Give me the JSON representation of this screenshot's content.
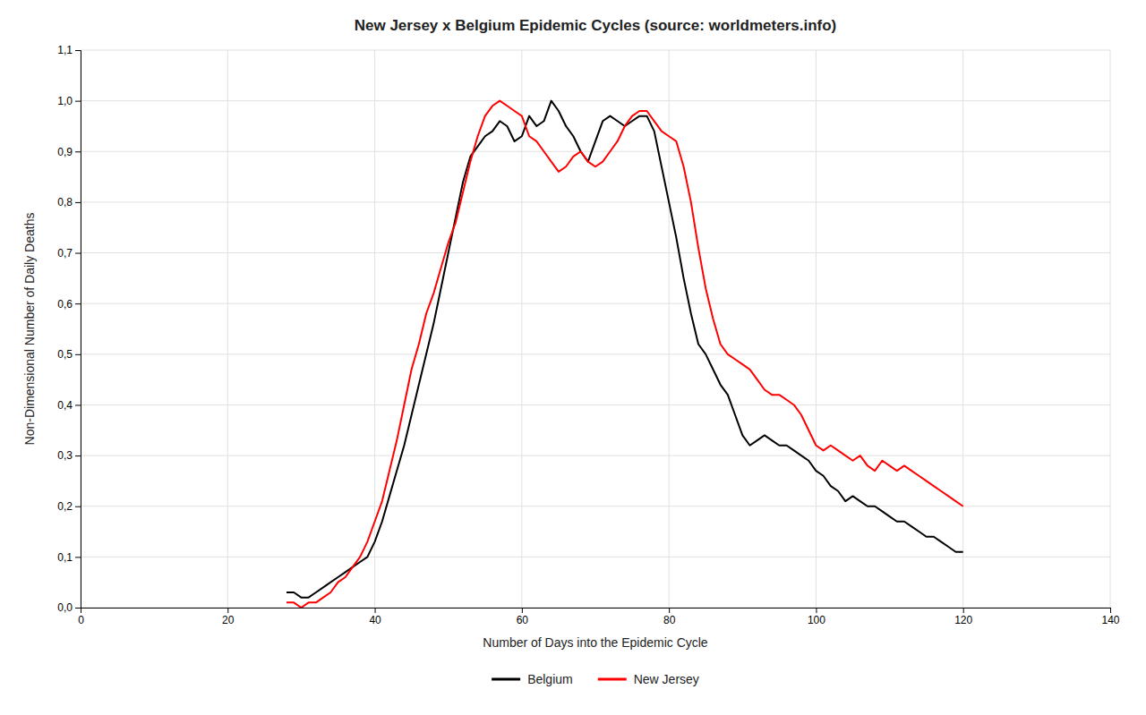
{
  "chart_data": {
    "type": "line",
    "title": "New Jersey x Belgium Epidemic Cycles (source: worldmeters.info)",
    "xlabel": "Number of Days into the Epidemic Cycle",
    "ylabel": "Non-Dimensional Number of Daily Deaths",
    "xlim": [
      0,
      140
    ],
    "ylim": [
      0,
      1.1
    ],
    "xticks": [
      0,
      20,
      40,
      60,
      80,
      100,
      120,
      140
    ],
    "yticks": [
      {
        "value": 0.0,
        "label": "0,0"
      },
      {
        "value": 0.1,
        "label": "0,1"
      },
      {
        "value": 0.2,
        "label": "0,2"
      },
      {
        "value": 0.3,
        "label": "0,3"
      },
      {
        "value": 0.4,
        "label": "0,4"
      },
      {
        "value": 0.5,
        "label": "0,5"
      },
      {
        "value": 0.6,
        "label": "0,6"
      },
      {
        "value": 0.7,
        "label": "0,7"
      },
      {
        "value": 0.8,
        "label": "0,8"
      },
      {
        "value": 0.9,
        "label": "0,9"
      },
      {
        "value": 1.0,
        "label": "1,0"
      },
      {
        "value": 1.1,
        "label": "1,1"
      }
    ],
    "grid": true,
    "legend": "bottom",
    "x": [
      28,
      29,
      30,
      31,
      32,
      33,
      34,
      35,
      36,
      37,
      38,
      39,
      40,
      41,
      42,
      43,
      44,
      45,
      46,
      47,
      48,
      49,
      50,
      51,
      52,
      53,
      54,
      55,
      56,
      57,
      58,
      59,
      60,
      61,
      62,
      63,
      64,
      65,
      66,
      67,
      68,
      69,
      70,
      71,
      72,
      73,
      74,
      75,
      76,
      77,
      78,
      79,
      80,
      81,
      82,
      83,
      84,
      85,
      86,
      87,
      88,
      89,
      90,
      91,
      92,
      93,
      94,
      95,
      96,
      97,
      98,
      99,
      100,
      101,
      102,
      103,
      104,
      105,
      106,
      107,
      108,
      109,
      110,
      111,
      112,
      113,
      114,
      115,
      116,
      117,
      118,
      119,
      120
    ],
    "series": [
      {
        "name": "Belgium",
        "color": "#000000",
        "values": [
          0.03,
          0.03,
          0.02,
          0.02,
          0.03,
          0.04,
          0.05,
          0.06,
          0.07,
          0.08,
          0.09,
          0.1,
          0.13,
          0.17,
          0.22,
          0.27,
          0.32,
          0.38,
          0.44,
          0.5,
          0.56,
          0.63,
          0.7,
          0.77,
          0.84,
          0.89,
          0.91,
          0.93,
          0.94,
          0.96,
          0.95,
          0.92,
          0.93,
          0.97,
          0.95,
          0.96,
          1.0,
          0.98,
          0.95,
          0.93,
          0.9,
          0.88,
          0.92,
          0.96,
          0.97,
          0.96,
          0.95,
          0.96,
          0.97,
          0.97,
          0.94,
          0.87,
          0.8,
          0.73,
          0.65,
          0.58,
          0.52,
          0.5,
          0.47,
          0.44,
          0.42,
          0.38,
          0.34,
          0.32,
          0.33,
          0.34,
          0.33,
          0.32,
          0.32,
          0.31,
          0.3,
          0.29,
          0.27,
          0.26,
          0.24,
          0.23,
          0.21,
          0.22,
          0.21,
          0.2,
          0.2,
          0.19,
          0.18,
          0.17,
          0.17,
          0.16,
          0.15,
          0.14,
          0.14,
          0.13,
          0.12,
          0.11,
          0.11
        ]
      },
      {
        "name": "New Jersey",
        "color": "#ff0000",
        "values": [
          0.01,
          0.01,
          0.0,
          0.01,
          0.01,
          0.02,
          0.03,
          0.05,
          0.06,
          0.08,
          0.1,
          0.13,
          0.17,
          0.21,
          0.27,
          0.33,
          0.4,
          0.47,
          0.52,
          0.58,
          0.62,
          0.67,
          0.72,
          0.76,
          0.82,
          0.88,
          0.93,
          0.97,
          0.99,
          1.0,
          0.99,
          0.98,
          0.97,
          0.93,
          0.92,
          0.9,
          0.88,
          0.86,
          0.87,
          0.89,
          0.9,
          0.88,
          0.87,
          0.88,
          0.9,
          0.92,
          0.95,
          0.97,
          0.98,
          0.98,
          0.96,
          0.94,
          0.93,
          0.92,
          0.87,
          0.8,
          0.71,
          0.63,
          0.57,
          0.52,
          0.5,
          0.49,
          0.48,
          0.47,
          0.45,
          0.43,
          0.42,
          0.42,
          0.41,
          0.4,
          0.38,
          0.35,
          0.32,
          0.31,
          0.32,
          0.31,
          0.3,
          0.29,
          0.3,
          0.28,
          0.27,
          0.29,
          0.28,
          0.27,
          0.28,
          0.27,
          0.26,
          0.25,
          0.24,
          0.23,
          0.22,
          0.21,
          0.2
        ]
      }
    ]
  }
}
